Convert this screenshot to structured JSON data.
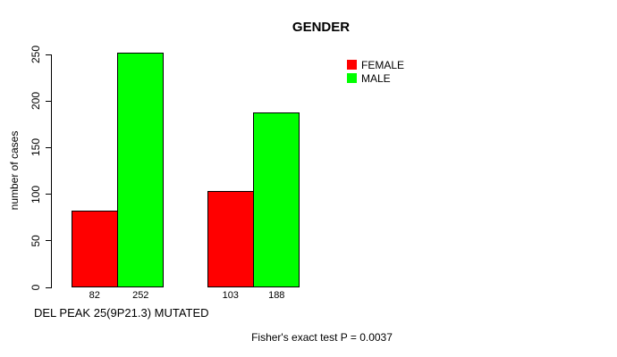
{
  "title": "GENDER",
  "y_axis": {
    "label": "number of cases"
  },
  "x_axis": {
    "label": "DEL PEAK 25(9P21.3) MUTATED"
  },
  "annotation": "Fisher's exact test P = 0.0037",
  "legend": {
    "position": "top-right",
    "items": [
      {
        "label": "FEMALE",
        "color": "#ff0000"
      },
      {
        "label": "MALE",
        "color": "#00ff00"
      }
    ]
  },
  "chart_data": {
    "type": "bar",
    "title": "GENDER",
    "xlabel": "DEL PEAK 25(9P21.3) MUTATED",
    "ylabel": "number of cases",
    "ylim": [
      0,
      250
    ],
    "yticks": [
      0,
      50,
      100,
      150,
      200,
      250
    ],
    "grid": false,
    "legend_position": "top-right",
    "series": [
      {
        "name": "FEMALE",
        "color": "#ff0000",
        "values": [
          82,
          103
        ]
      },
      {
        "name": "MALE",
        "color": "#00ff00",
        "values": [
          252,
          188
        ]
      }
    ],
    "bar_value_labels": [
      [
        "82",
        "252"
      ],
      [
        "103",
        "188"
      ]
    ],
    "annotation": "Fisher's exact test P = 0.0037"
  }
}
